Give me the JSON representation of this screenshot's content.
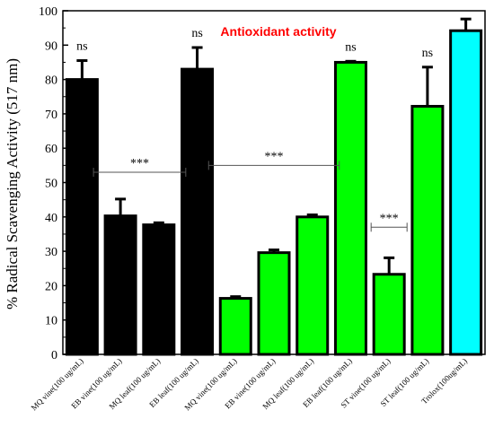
{
  "chart_data": {
    "type": "bar",
    "title": "Antioxidant activity",
    "ylabel": "% Radical Scavenging Activity (517 nm)",
    "xlabel": "",
    "ylim": [
      0,
      100
    ],
    "yticks": [
      0,
      10,
      20,
      30,
      40,
      50,
      60,
      70,
      80,
      90,
      100
    ],
    "grid": false,
    "categories": [
      "MQ vine(100 ug/mL)",
      "EB vine(100 ug/mL)",
      "MQ leaf(100 ug/mL)",
      "EB leaf(100 ug/mL)",
      "MQ vine(100 ug/mL)",
      "EB vine(100 ug/mL)",
      "MQ leaf(100 ug/mL)",
      "EB leaf(100 ug/mL)",
      "ST vine(100 ug/mL)",
      "ST leaf(100 ug/mL)",
      "Trolox(100ug/mL)"
    ],
    "values": [
      80,
      40.3,
      37.7,
      83,
      16.3,
      29.6,
      40,
      85,
      23.3,
      72.2,
      94.2
    ],
    "errors": [
      5.5,
      4.9,
      0.6,
      6.3,
      0.5,
      0.8,
      0.6,
      0.3,
      4.8,
      11.4,
      3.4
    ],
    "colors": [
      "#000000",
      "#000000",
      "#000000",
      "#000000",
      "#00ff00",
      "#00ff00",
      "#00ff00",
      "#00ff00",
      "#00ff00",
      "#00ff00",
      "#00ffff"
    ],
    "annotations": [
      {
        "text": "ns",
        "bar": 0
      },
      {
        "text": "ns",
        "bar": 3
      },
      {
        "text": "ns",
        "bar": 7
      },
      {
        "text": "ns",
        "bar": 9
      }
    ],
    "significance_brackets": [
      {
        "text": "***",
        "from_bar": 1,
        "to_bar": 2,
        "y": 53
      },
      {
        "text": "***",
        "from_bar": 4,
        "to_bar": 6,
        "y": 55
      },
      {
        "text": "***",
        "from_bar": 8,
        "to_bar": 8,
        "y": 37
      }
    ]
  }
}
